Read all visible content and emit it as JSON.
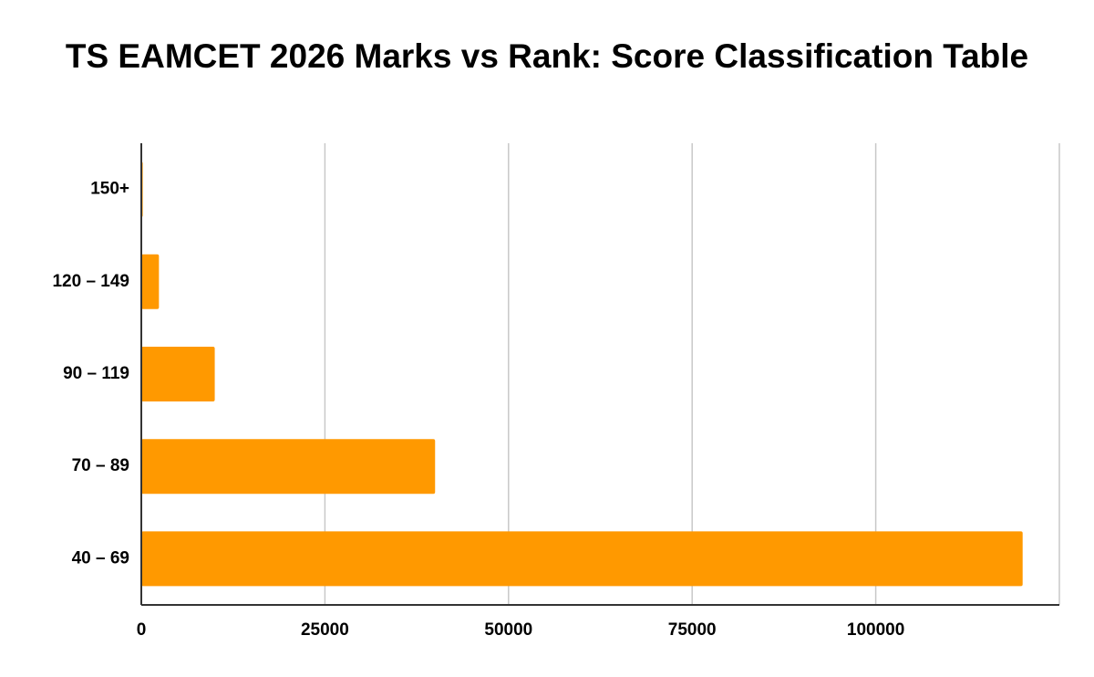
{
  "chart_data": {
    "type": "bar",
    "orientation": "horizontal",
    "title": "TS EAMCET 2026 Marks vs Rank: Score Classification Table",
    "categories": [
      "150+",
      "120 – 149",
      "90 – 119",
      "70 – 89",
      "40 – 69"
    ],
    "values": [
      200,
      2400,
      10000,
      40000,
      120000
    ],
    "color": "#ff9900",
    "xlim": [
      0,
      125000
    ],
    "xticks": [
      0,
      25000,
      50000,
      75000,
      100000
    ],
    "grid": true
  }
}
